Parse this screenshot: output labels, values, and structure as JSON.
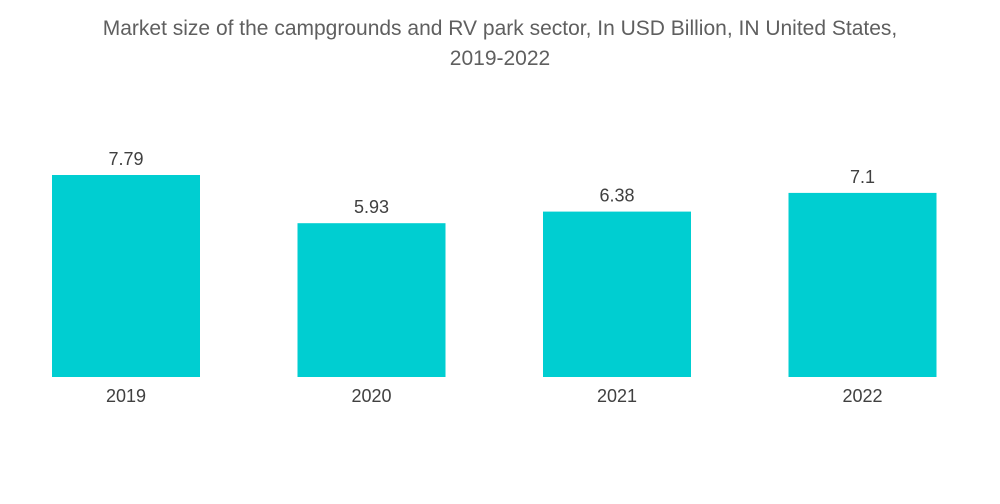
{
  "chart_data": {
    "type": "bar",
    "title_line1": "Market size of the campgrounds and RV park sector, In USD Billion, IN United States,",
    "title_line2": "2019-2022",
    "categories": [
      "2019",
      "2020",
      "2021",
      "2022"
    ],
    "values": [
      7.79,
      5.93,
      6.38,
      7.1
    ],
    "value_labels": [
      "7.79",
      "5.93",
      "6.38",
      "7.1"
    ],
    "xlabel": "",
    "ylabel": "",
    "ylim": [
      0,
      7.79
    ],
    "grid": false,
    "legend": "none",
    "bar_color": "#00ced1"
  }
}
